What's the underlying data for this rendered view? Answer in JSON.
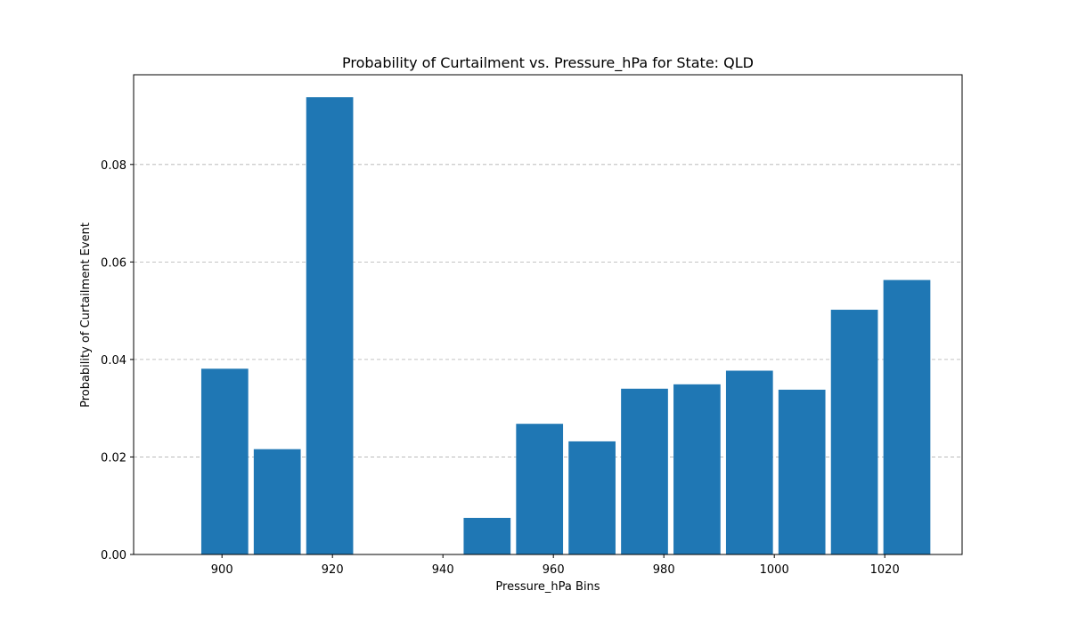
{
  "chart_data": {
    "type": "bar",
    "title": "Probability of Curtailment vs. Pressure_hPa for State: QLD",
    "xlabel": "Pressure_hPa Bins",
    "ylabel": "Probability of Curtailment Event",
    "bar_color": "#1f77b4",
    "xlim": [
      884,
      1034
    ],
    "ylim": [
      0,
      0.0984
    ],
    "grid": "y-dashed",
    "bar_width": 8.5,
    "xticks": [
      900,
      920,
      940,
      960,
      980,
      1000,
      1020
    ],
    "yticks": [
      0.0,
      0.02,
      0.04,
      0.06,
      0.08
    ],
    "ytick_labels": [
      "0.00",
      "0.02",
      "0.04",
      "0.06",
      "0.08"
    ],
    "x": [
      900.5,
      910,
      919.5,
      929,
      938.5,
      948,
      957.5,
      967,
      976.5,
      986,
      995.5,
      1005,
      1014.5,
      1024
    ],
    "values": [
      0.0381,
      0.0216,
      0.0938,
      0,
      0,
      0.0075,
      0.0268,
      0.0232,
      0.034,
      0.0349,
      0.0377,
      0.0338,
      0.0502,
      0.0563
    ]
  }
}
